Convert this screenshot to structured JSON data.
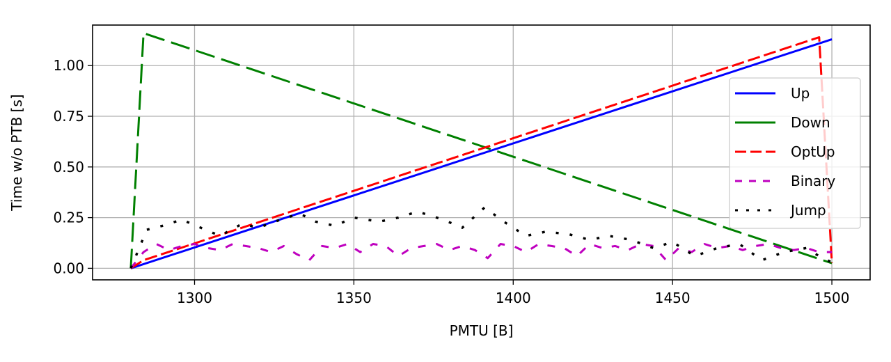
{
  "chart_data": {
    "type": "line",
    "xlabel": "PMTU [B]",
    "ylabel": "Time w/o PTB [s]",
    "xlim": [
      1268,
      1512
    ],
    "ylim": [
      -0.057,
      1.2
    ],
    "xticks": [
      1300,
      1350,
      1400,
      1450,
      1500
    ],
    "xtick_labels": [
      "1300",
      "1350",
      "1400",
      "1450",
      "1500"
    ],
    "yticks": [
      0.0,
      0.25,
      0.5,
      0.75,
      1.0
    ],
    "ytick_labels": [
      "0.00",
      "0.25",
      "0.50",
      "0.75",
      "1.00"
    ],
    "grid": true,
    "legend_position": "center-right",
    "series": [
      {
        "name": "Up",
        "color": "#0000ff",
        "dash": "solid",
        "x": [
          1280,
          1500
        ],
        "y": [
          0.0,
          1.13
        ]
      },
      {
        "name": "Down",
        "color": "#008000",
        "dash": "long-dash",
        "x": [
          1280,
          1284,
          1500
        ],
        "y": [
          0.0,
          1.16,
          0.025
        ]
      },
      {
        "name": "OptUp",
        "color": "#ff0000",
        "dash": "dash",
        "x": [
          1280,
          1284,
          1496,
          1500
        ],
        "y": [
          0.0,
          0.04,
          1.14,
          0.025
        ]
      },
      {
        "name": "Binary",
        "color": "#bf00bf",
        "dash": "short-dash",
        "x": [
          1280,
          1284,
          1288,
          1292,
          1296,
          1300,
          1304,
          1308,
          1312,
          1316,
          1320,
          1324,
          1328,
          1332,
          1336,
          1340,
          1344,
          1348,
          1352,
          1356,
          1360,
          1364,
          1368,
          1372,
          1376,
          1380,
          1384,
          1388,
          1392,
          1396,
          1400,
          1404,
          1408,
          1412,
          1416,
          1420,
          1424,
          1428,
          1432,
          1436,
          1440,
          1444,
          1448,
          1452,
          1456,
          1460,
          1464,
          1468,
          1472,
          1476,
          1480,
          1484,
          1488,
          1492,
          1496,
          1500
        ],
        "y": [
          0.0,
          0.08,
          0.12,
          0.09,
          0.11,
          0.12,
          0.1,
          0.09,
          0.12,
          0.11,
          0.1,
          0.08,
          0.11,
          0.07,
          0.04,
          0.11,
          0.1,
          0.12,
          0.08,
          0.12,
          0.11,
          0.06,
          0.1,
          0.11,
          0.12,
          0.09,
          0.11,
          0.09,
          0.05,
          0.12,
          0.11,
          0.08,
          0.12,
          0.11,
          0.1,
          0.06,
          0.12,
          0.1,
          0.11,
          0.09,
          0.12,
          0.11,
          0.04,
          0.1,
          0.08,
          0.12,
          0.1,
          0.11,
          0.09,
          0.11,
          0.12,
          0.1,
          0.09,
          0.1,
          0.08,
          0.08
        ]
      },
      {
        "name": "Jump",
        "color": "#000000",
        "dash": "dot",
        "x": [
          1280,
          1285,
          1290,
          1296,
          1302,
          1308,
          1315,
          1320,
          1327,
          1333,
          1338,
          1344,
          1350,
          1358,
          1364,
          1370,
          1378,
          1384,
          1391,
          1398,
          1404,
          1410,
          1417,
          1424,
          1430,
          1437,
          1444,
          1450,
          1457,
          1464,
          1471,
          1478,
          1485,
          1492,
          1497,
          1500
        ],
        "y": [
          0.0,
          0.19,
          0.21,
          0.24,
          0.2,
          0.16,
          0.22,
          0.2,
          0.24,
          0.27,
          0.23,
          0.21,
          0.25,
          0.23,
          0.25,
          0.28,
          0.24,
          0.2,
          0.3,
          0.22,
          0.16,
          0.18,
          0.17,
          0.14,
          0.16,
          0.14,
          0.1,
          0.13,
          0.06,
          0.1,
          0.12,
          0.04,
          0.08,
          0.1,
          0.05,
          0.03
        ]
      }
    ]
  }
}
